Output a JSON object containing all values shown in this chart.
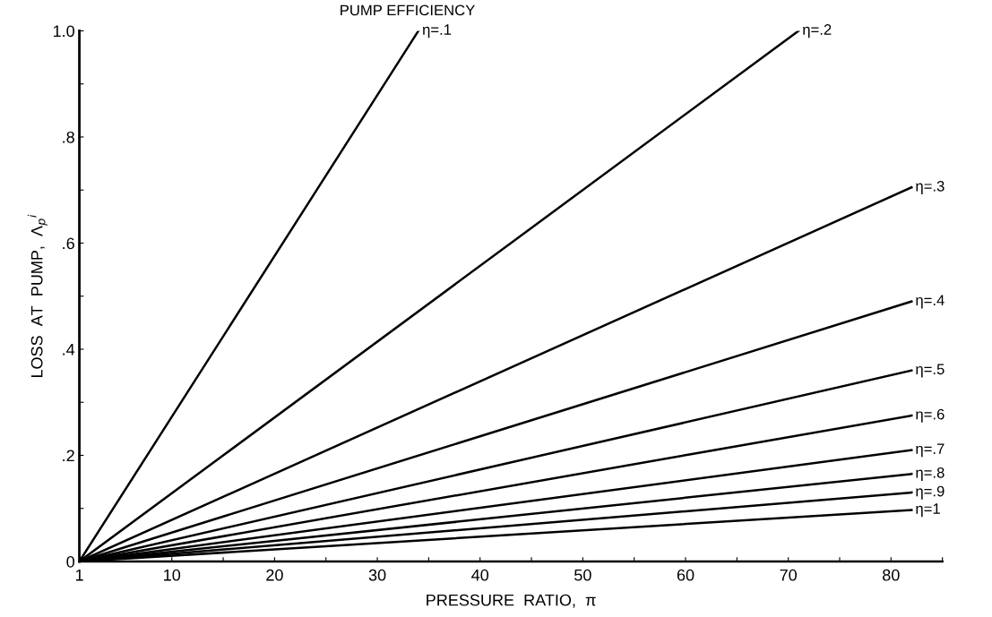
{
  "chart_data": {
    "type": "line",
    "title": "PUMP EFFICIENCY",
    "xlabel": "PRESSURE  RATIO,  π",
    "ylabel": "LOSS  AT  PUMP,  Λ$_{p}$$^{i}$",
    "series": [
      {
        "name": "η=.1",
        "color": "#000000",
        "x": [
          1,
          34
        ],
        "values": [
          0,
          1.0
        ]
      },
      {
        "name": "η=.2",
        "color": "#000000",
        "x": [
          1,
          71
        ],
        "values": [
          0,
          1.0
        ]
      },
      {
        "name": "η=.3",
        "color": "#000000",
        "x": [
          1,
          82
        ],
        "values": [
          0,
          0.705
        ]
      },
      {
        "name": "η=.4",
        "color": "#000000",
        "x": [
          1,
          82
        ],
        "values": [
          0,
          0.49
        ]
      },
      {
        "name": "η=.5",
        "color": "#000000",
        "x": [
          1,
          82
        ],
        "values": [
          0,
          0.36
        ]
      },
      {
        "name": "η=.6",
        "color": "#000000",
        "x": [
          1,
          82
        ],
        "values": [
          0,
          0.275
        ]
      },
      {
        "name": "η=.7",
        "color": "#000000",
        "x": [
          1,
          82
        ],
        "values": [
          0,
          0.21
        ]
      },
      {
        "name": "η=.8",
        "color": "#000000",
        "x": [
          1,
          82
        ],
        "values": [
          0,
          0.165
        ]
      },
      {
        "name": "η=.9",
        "color": "#000000",
        "x": [
          1,
          82
        ],
        "values": [
          0,
          0.13
        ]
      },
      {
        "name": "η=1",
        "color": "#000000",
        "x": [
          1,
          82
        ],
        "values": [
          0,
          0.097
        ]
      }
    ],
    "xlim": [
      1,
      85
    ],
    "ylim": [
      0,
      1.0
    ],
    "xticks": [
      1,
      10,
      {
        "value": 15,
        "label": null
      },
      20,
      {
        "value": 25,
        "label": null
      },
      30,
      {
        "value": 35,
        "label": null
      },
      40,
      {
        "value": 45,
        "label": null
      },
      50,
      {
        "value": 55,
        "label": null
      },
      60,
      {
        "value": 65,
        "label": null
      },
      70,
      {
        "value": 75,
        "label": null
      },
      80,
      {
        "value": 85,
        "label": null
      }
    ],
    "yticks": [
      0,
      {
        "value": 0.1,
        "label": null
      },
      {
        "value": 0.2,
        "label": ".2"
      },
      {
        "value": 0.3,
        "label": null
      },
      {
        "value": 0.4,
        "label": ".4"
      },
      {
        "value": 0.5,
        "label": null
      },
      {
        "value": 0.6,
        "label": ".6"
      },
      {
        "value": 0.7,
        "label": null
      },
      {
        "value": 0.8,
        "label": ".8"
      },
      {
        "value": 0.9,
        "label": null
      },
      {
        "value": 1.0,
        "label": "1.0"
      }
    ],
    "grid": false,
    "marker": "none",
    "line_style": "solid"
  }
}
